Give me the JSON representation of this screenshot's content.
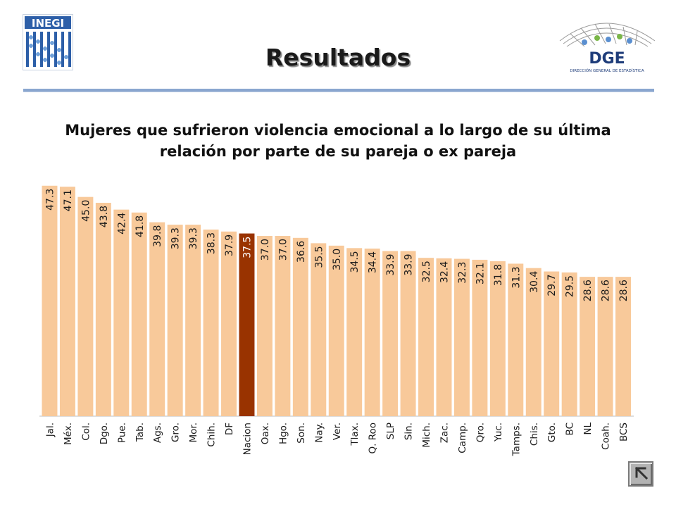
{
  "logos": {
    "left": "INEGI",
    "right": "DGE",
    "right_sub": "DIRECCIÓN GENERAL DE ESTADÍSTICA"
  },
  "header": {
    "title": "Resultados"
  },
  "chart_data": {
    "type": "bar",
    "title": "Mujeres que sufrieron violencia emocional a lo largo de su última relación por parte de su pareja o ex pareja",
    "categories": [
      "Jal.",
      "Méx.",
      "Col.",
      "Dgo.",
      "Pue.",
      "Tab.",
      "Ags.",
      "Gro.",
      "Mor.",
      "Chih.",
      "DF",
      "Nacion",
      "Oax.",
      "Hgo.",
      "Son.",
      "Nay.",
      "Ver.",
      "Tlax.",
      "Q. Roo",
      "SLP",
      "Sin.",
      "Mich.",
      "Zac.",
      "Camp.",
      "Qro.",
      "Yuc.",
      "Tamps.",
      "Chis.",
      "Gto.",
      "BC",
      "NL",
      "Coah.",
      "BCS"
    ],
    "values": [
      47.3,
      47.1,
      45.0,
      43.8,
      42.4,
      41.8,
      39.8,
      39.3,
      39.3,
      38.3,
      37.9,
      37.5,
      37.0,
      37.0,
      36.6,
      35.5,
      35.0,
      34.5,
      34.4,
      33.9,
      33.9,
      32.5,
      32.4,
      32.3,
      32.1,
      31.8,
      31.3,
      30.4,
      29.7,
      29.5,
      28.6,
      28.6,
      28.6
    ],
    "labels": [
      "47.3",
      "47.1",
      "45.0",
      "43.8",
      "42.4",
      "41.8",
      "39.8",
      "39.3",
      "39.3",
      "38.3",
      "37.9",
      "37.5",
      "37.0",
      "37.0",
      "36.6",
      "35.5",
      "35.0",
      "34.5",
      "34.4",
      "33.9",
      "33.9",
      "32.5",
      "32.4",
      "32.3",
      "32.1",
      "31.8",
      "31.3",
      "30.4",
      "29.7",
      "29.5",
      "28.6",
      "28.6",
      "28.6"
    ],
    "highlight": "Nacion",
    "xlabel": "",
    "ylabel": "",
    "ylim": [
      0,
      49
    ],
    "grid": false,
    "colors": {
      "bar": "#F8C99A",
      "highlight": "#993300",
      "label": "#1a1a1a",
      "highlight_label": "#ffffff"
    }
  },
  "nav": {
    "back_icon": "back-arrow-icon"
  }
}
